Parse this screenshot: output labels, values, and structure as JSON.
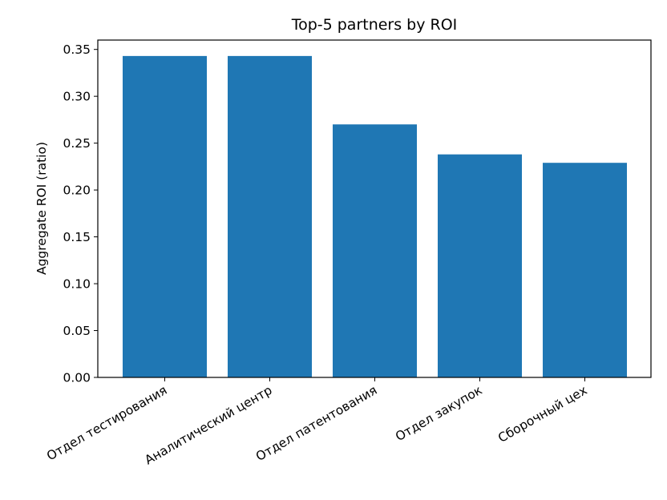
{
  "chart_data": {
    "type": "bar",
    "title": "Top-5 partners by ROI",
    "xlabel": "",
    "ylabel": "Aggregate ROI (ratio)",
    "categories": [
      "Отдел тестирования",
      "Аналитический центр",
      "Отдел патентования",
      "Отдел закупок",
      "Сборочный цех"
    ],
    "values": [
      0.343,
      0.343,
      0.27,
      0.238,
      0.229
    ],
    "ylim": [
      0,
      0.36
    ],
    "yticks": [
      "0.00",
      "0.05",
      "0.10",
      "0.15",
      "0.20",
      "0.25",
      "0.30",
      "0.35"
    ],
    "bar_color": "#1f77b4",
    "grid": false
  }
}
